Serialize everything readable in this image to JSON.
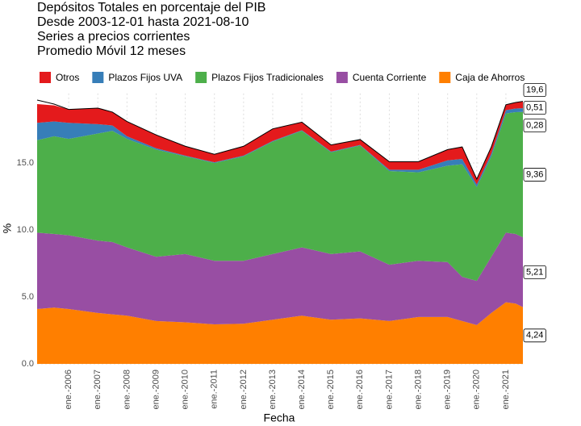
{
  "chart_data": {
    "type": "stacked-area",
    "title": [
      "Depósitos Totales en porcentaje del PIB",
      "Desde 2003-12-01 hasta 2021-08-10",
      "Series a precios corrientes",
      "Promedio Móvil 12 meses"
    ],
    "x_label": "Fecha",
    "y_label": "%",
    "x": [
      "2004-12",
      "2005-07",
      "2006-01",
      "2007-01",
      "2007-07",
      "2008-01",
      "2009-01",
      "2010-01",
      "2011-01",
      "2012-01",
      "2013-01",
      "2014-01",
      "2015-01",
      "2016-01",
      "2017-01",
      "2018-01",
      "2019-01",
      "2019-07",
      "2020-01",
      "2020-07",
      "2021-01",
      "2021-05",
      "2021-08"
    ],
    "series": [
      {
        "name": "Otros",
        "color": "#E41A1C",
        "values": [
          1.4,
          1.2,
          1.0,
          1.2,
          1.0,
          1.1,
          1.0,
          0.7,
          0.6,
          0.7,
          0.9,
          0.6,
          0.5,
          0.4,
          0.6,
          0.6,
          0.8,
          0.9,
          0.4,
          0.5,
          0.4,
          0.45,
          0.51
        ],
        "value_labels": [
          null,
          null,
          null,
          null,
          null,
          null,
          null,
          null,
          null,
          null,
          null,
          null,
          null,
          null,
          null,
          null,
          null,
          null,
          null,
          null,
          null,
          null,
          "0,51"
        ]
      },
      {
        "name": "Plazos Fijos UVA",
        "color": "#377EB8",
        "values": [
          1.3,
          1.1,
          1.2,
          0.7,
          0.4,
          0.2,
          0.1,
          0.05,
          0.05,
          0.05,
          0.05,
          0.05,
          0.05,
          0.05,
          0.1,
          0.2,
          0.4,
          0.4,
          0.2,
          0.2,
          0.25,
          0.27,
          0.28
        ],
        "value_labels": [
          null,
          null,
          null,
          null,
          null,
          null,
          null,
          null,
          null,
          null,
          null,
          null,
          null,
          null,
          null,
          null,
          null,
          null,
          null,
          null,
          null,
          null,
          "0,28"
        ]
      },
      {
        "name": "Plazos Fijos Tradicionales",
        "color": "#4DAF4A",
        "values": [
          6.9,
          7.3,
          7.2,
          8.0,
          8.3,
          8.1,
          8.0,
          7.3,
          7.3,
          7.8,
          8.4,
          8.7,
          7.6,
          7.9,
          7.0,
          6.6,
          7.2,
          8.4,
          7.0,
          7.5,
          8.9,
          9.1,
          9.36
        ],
        "value_labels": [
          null,
          null,
          null,
          null,
          null,
          null,
          null,
          null,
          null,
          null,
          null,
          null,
          null,
          null,
          null,
          null,
          null,
          null,
          null,
          null,
          null,
          null,
          "9,36"
        ]
      },
      {
        "name": "Cuenta Corriente",
        "color": "#984EA3",
        "values": [
          5.7,
          5.5,
          5.5,
          5.4,
          5.4,
          5.1,
          4.8,
          5.1,
          4.75,
          4.7,
          4.9,
          5.1,
          4.9,
          5.0,
          4.2,
          4.2,
          4.1,
          3.3,
          3.3,
          4.2,
          5.2,
          5.2,
          5.21
        ],
        "value_labels": [
          null,
          null,
          null,
          null,
          null,
          null,
          null,
          null,
          null,
          null,
          null,
          null,
          null,
          null,
          null,
          null,
          null,
          null,
          null,
          null,
          null,
          null,
          "5,21"
        ]
      },
      {
        "name": "Caja de Ahorros",
        "color": "#FF7F00",
        "values": [
          4.1,
          4.2,
          4.1,
          3.8,
          3.7,
          3.6,
          3.2,
          3.1,
          2.95,
          3.0,
          3.3,
          3.6,
          3.3,
          3.4,
          3.2,
          3.5,
          3.5,
          3.2,
          2.9,
          3.8,
          4.6,
          4.5,
          4.24
        ],
        "value_labels": [
          null,
          null,
          null,
          null,
          null,
          null,
          null,
          null,
          null,
          null,
          null,
          null,
          null,
          null,
          null,
          null,
          null,
          null,
          null,
          null,
          null,
          null,
          "4,24"
        ]
      }
    ],
    "total_line": {
      "color": "#000000",
      "values": [
        19.7,
        19.4,
        19.0,
        19.1,
        18.8,
        18.1,
        17.1,
        16.25,
        15.65,
        16.25,
        17.55,
        18.05,
        16.35,
        16.75,
        15.1,
        15.1,
        16.0,
        16.2,
        13.8,
        16.2,
        19.35,
        19.52,
        19.6
      ],
      "value_labels": [
        null,
        null,
        null,
        null,
        null,
        null,
        null,
        null,
        null,
        null,
        null,
        null,
        null,
        null,
        null,
        null,
        null,
        null,
        null,
        null,
        null,
        null,
        "19,6"
      ]
    },
    "xlim": [
      "2004-12",
      "2021-08"
    ],
    "xticks": [
      {
        "value": "2006-01",
        "label": "ene.-2006"
      },
      {
        "value": "2007-01",
        "label": "ene.-2007"
      },
      {
        "value": "2008-01",
        "label": "ene.-2008"
      },
      {
        "value": "2009-01",
        "label": "ene.-2009"
      },
      {
        "value": "2010-01",
        "label": "ene.-2010"
      },
      {
        "value": "2011-01",
        "label": "ene.-2011"
      },
      {
        "value": "2012-01",
        "label": "ene.-2012"
      },
      {
        "value": "2013-01",
        "label": "ene.-2013"
      },
      {
        "value": "2014-01",
        "label": "ene.-2014"
      },
      {
        "value": "2015-01",
        "label": "ene.-2015"
      },
      {
        "value": "2016-01",
        "label": "ene.-2016"
      },
      {
        "value": "2017-01",
        "label": "ene.-2017"
      },
      {
        "value": "2018-01",
        "label": "ene.-2018"
      },
      {
        "value": "2019-01",
        "label": "ene.-2019"
      },
      {
        "value": "2020-01",
        "label": "ene.-2020"
      },
      {
        "value": "2021-01",
        "label": "ene.-2021"
      }
    ],
    "ylim": [
      0,
      20.2
    ],
    "yticks": [
      {
        "value": 0,
        "label": "0.0"
      },
      {
        "value": 5,
        "label": "5.0"
      },
      {
        "value": 10,
        "label": "10.0"
      },
      {
        "value": 15,
        "label": "15.0"
      }
    ],
    "grid": true,
    "legend": "top"
  }
}
